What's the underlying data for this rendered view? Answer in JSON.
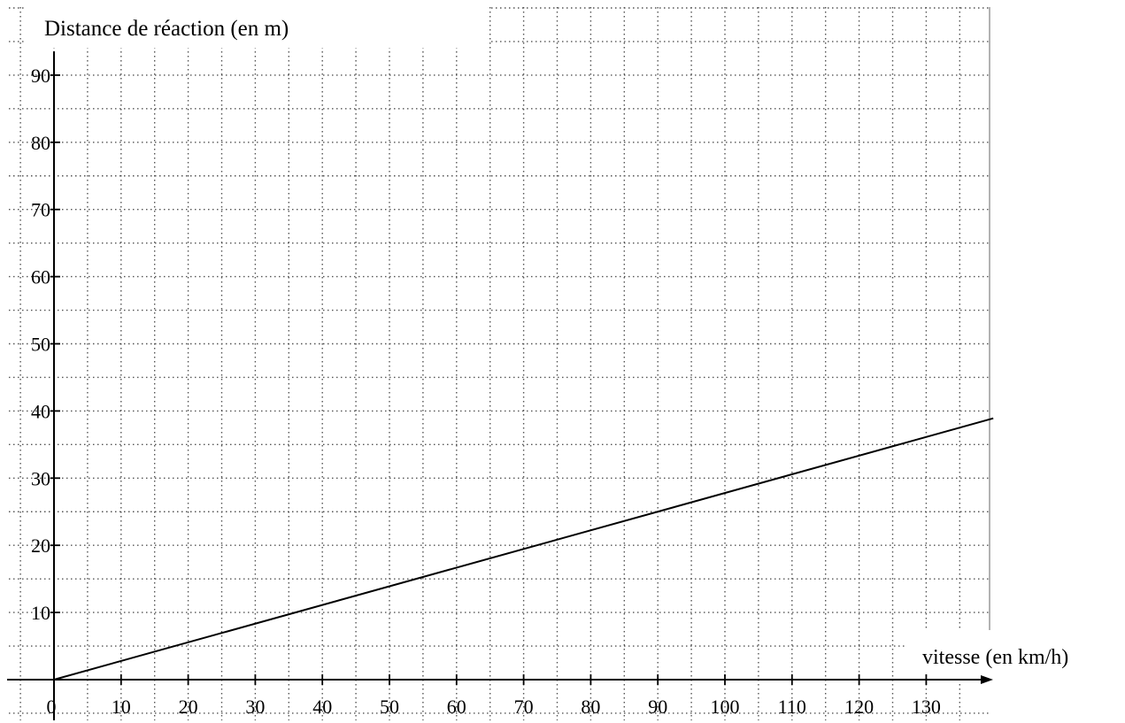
{
  "chart_data": {
    "type": "line",
    "title": "",
    "ylabel": "Distance de réaction (en m)",
    "xlabel": "vitesse (en km/h)",
    "xlim": [
      0,
      140
    ],
    "ylim": [
      -8,
      97
    ],
    "grid": true,
    "grid_style": "dotted",
    "x_ticks": [
      0,
      10,
      20,
      30,
      40,
      50,
      60,
      70,
      80,
      90,
      100,
      110,
      120,
      130
    ],
    "y_ticks": [
      10,
      20,
      30,
      40,
      50,
      60,
      70,
      80,
      90
    ],
    "x_tick_labels": [
      "0",
      "10",
      "20",
      "30",
      "40",
      "50",
      "60",
      "70",
      "80",
      "90",
      "100",
      "110",
      "120",
      "130"
    ],
    "y_tick_labels": [
      "10",
      "20",
      "30",
      "40",
      "50",
      "60",
      "70",
      "80",
      "90"
    ],
    "series": [
      {
        "x": [
          0,
          140
        ],
        "y": [
          0,
          38.9
        ],
        "color": "#000000"
      }
    ]
  }
}
